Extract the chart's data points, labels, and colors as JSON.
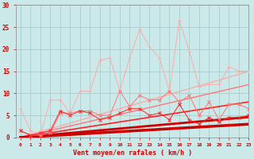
{
  "xlabel": "Vent moyen/en rafales ( km/h )",
  "xlim": [
    -0.5,
    23
  ],
  "ylim": [
    0,
    30
  ],
  "yticks": [
    0,
    5,
    10,
    15,
    20,
    25,
    30
  ],
  "xticks": [
    0,
    1,
    2,
    3,
    4,
    5,
    6,
    7,
    8,
    9,
    10,
    11,
    12,
    13,
    14,
    15,
    16,
    17,
    18,
    19,
    20,
    21,
    22,
    23
  ],
  "bg_color": "#cce9e9",
  "grid_color": "#aacccc",
  "x": [
    0,
    1,
    2,
    3,
    4,
    5,
    6,
    7,
    8,
    9,
    10,
    11,
    12,
    13,
    14,
    15,
    16,
    17,
    18,
    19,
    20,
    21,
    22,
    23
  ],
  "s1": [
    6.5,
    1.5,
    0.5,
    8.5,
    8.5,
    5.5,
    10.5,
    10.5,
    17.5,
    18.0,
    10.5,
    18.0,
    24.5,
    20.5,
    18.0,
    10.5,
    26.5,
    19.5,
    11.5,
    12.0,
    12.0,
    16.0,
    15.0,
    15.0
  ],
  "s2": [
    1.5,
    0.5,
    0.5,
    1.0,
    5.5,
    5.5,
    6.0,
    6.0,
    5.0,
    5.0,
    10.5,
    7.0,
    9.5,
    8.5,
    8.5,
    10.5,
    8.0,
    9.5,
    5.0,
    8.0,
    4.0,
    7.5,
    7.5,
    6.5
  ],
  "s3": [
    1.5,
    0.5,
    1.0,
    1.5,
    6.0,
    5.0,
    6.0,
    5.5,
    4.0,
    4.5,
    5.5,
    6.5,
    6.5,
    5.0,
    5.5,
    4.0,
    7.5,
    4.0,
    3.0,
    4.5,
    3.5,
    4.5,
    4.5,
    5.0
  ],
  "trend1": [
    0.0,
    0.13,
    0.26,
    0.39,
    0.52,
    0.65,
    0.78,
    0.91,
    1.04,
    1.17,
    1.3,
    1.43,
    1.56,
    1.69,
    1.82,
    1.95,
    2.08,
    2.21,
    2.34,
    2.47,
    2.6,
    2.73,
    2.86,
    2.99
  ],
  "trend2": [
    0.0,
    0.2,
    0.4,
    0.6,
    0.8,
    1.0,
    1.2,
    1.4,
    1.6,
    1.8,
    2.0,
    2.2,
    2.4,
    2.6,
    2.8,
    3.0,
    3.2,
    3.4,
    3.6,
    3.8,
    4.0,
    4.2,
    4.4,
    4.6
  ],
  "trend3": [
    0.0,
    0.35,
    0.7,
    1.05,
    1.4,
    1.75,
    2.1,
    2.45,
    2.8,
    3.15,
    3.5,
    3.85,
    4.2,
    4.55,
    4.9,
    5.25,
    5.6,
    5.95,
    6.3,
    6.65,
    7.0,
    7.35,
    7.7,
    8.05
  ],
  "trend4": [
    0.0,
    0.52,
    1.04,
    1.56,
    2.08,
    2.6,
    3.12,
    3.64,
    4.16,
    4.68,
    5.2,
    5.72,
    6.24,
    6.76,
    7.28,
    7.8,
    8.32,
    8.84,
    9.36,
    9.88,
    10.4,
    10.92,
    11.44,
    11.96
  ],
  "trend5": [
    0.0,
    0.65,
    1.3,
    1.95,
    2.6,
    3.25,
    3.9,
    4.55,
    5.2,
    5.85,
    6.5,
    7.15,
    7.8,
    8.45,
    9.1,
    9.75,
    10.4,
    11.05,
    11.7,
    12.35,
    13.0,
    13.65,
    14.3,
    14.95
  ],
  "c_light": "#ffaaaa",
  "c_mid": "#ff7777",
  "c_dark": "#ff2222",
  "c_darkest": "#cc0000"
}
